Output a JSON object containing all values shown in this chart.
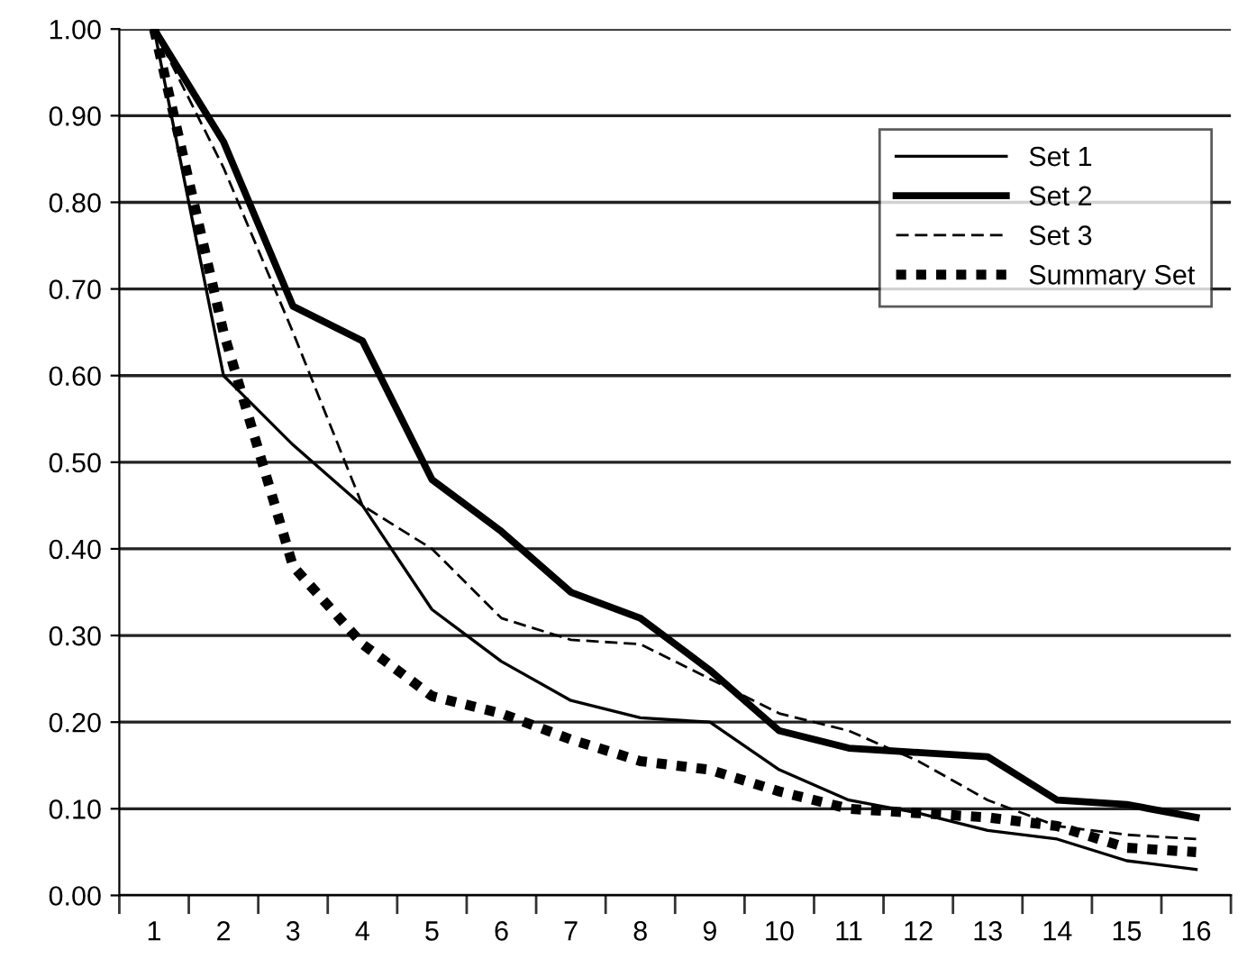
{
  "chart_data": {
    "type": "line",
    "categories": [
      "1",
      "2",
      "3",
      "4",
      "5",
      "6",
      "7",
      "8",
      "9",
      "10",
      "11",
      "12",
      "13",
      "14",
      "15",
      "16"
    ],
    "series": [
      {
        "name": "Set 1",
        "color": "#000000",
        "line_style": "solid",
        "values": [
          1.0,
          0.6,
          0.52,
          0.45,
          0.33,
          0.27,
          0.225,
          0.205,
          0.2,
          0.145,
          0.11,
          0.095,
          0.075,
          0.065,
          0.04,
          0.03
        ]
      },
      {
        "name": "Set 2",
        "color": "#000000",
        "line_style": "solid",
        "values": [
          1.0,
          0.87,
          0.68,
          0.64,
          0.48,
          0.42,
          0.35,
          0.32,
          0.26,
          0.19,
          0.17,
          0.165,
          0.16,
          0.11,
          0.105,
          0.09
        ]
      },
      {
        "name": "Set 3",
        "color": "#000000",
        "line_style": "dashed",
        "values": [
          1.0,
          0.84,
          0.65,
          0.45,
          0.4,
          0.32,
          0.295,
          0.29,
          0.25,
          0.21,
          0.19,
          0.155,
          0.11,
          0.08,
          0.07,
          0.065
        ]
      },
      {
        "name": "Summary Set",
        "color": "#000000",
        "line_style": "dotted",
        "values": [
          1.0,
          0.65,
          0.38,
          0.29,
          0.23,
          0.21,
          0.18,
          0.155,
          0.145,
          0.12,
          0.1,
          0.095,
          0.09,
          0.08,
          0.055,
          0.05
        ]
      }
    ],
    "ylim": [
      0,
      1
    ],
    "yticks": [
      {
        "value": 0,
        "label": "0.00"
      },
      {
        "value": 0.1,
        "label": "0.10"
      },
      {
        "value": 0.2,
        "label": "0.20"
      },
      {
        "value": 0.3,
        "label": "0.30"
      },
      {
        "value": 0.4,
        "label": "0.40"
      },
      {
        "value": 0.5,
        "label": "0.50"
      },
      {
        "value": 0.6,
        "label": "0.60"
      },
      {
        "value": 0.7,
        "label": "0.70"
      },
      {
        "value": 0.8,
        "label": "0.80"
      },
      {
        "value": 0.9,
        "label": "0.90"
      },
      {
        "value": 1.0,
        "label": "1.00"
      }
    ],
    "grid": "y",
    "legend": "top right",
    "marker": "none"
  }
}
